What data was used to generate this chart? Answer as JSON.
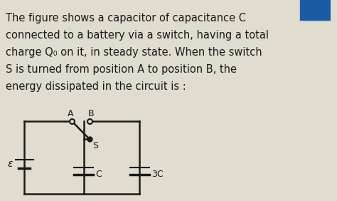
{
  "bg_color": "#e0ddd0",
  "text_color": "#1a1a1a",
  "corner_color": "#1a5ba6",
  "font_size": 10.5,
  "text_lines": [
    "The figure shows a capacitor of capacitance C",
    "connected to a battery via a switch, having a total",
    "charge Q₀ on it, in steady state. When the switch",
    "S is turned from position A to position B, the",
    "energy dissipated in the circuit is :"
  ],
  "circuit": {
    "epsilon_label": "ε",
    "C_label": "C",
    "3C_label": "3C",
    "A_label": "A",
    "B_label": "B",
    "S_label": "S"
  }
}
